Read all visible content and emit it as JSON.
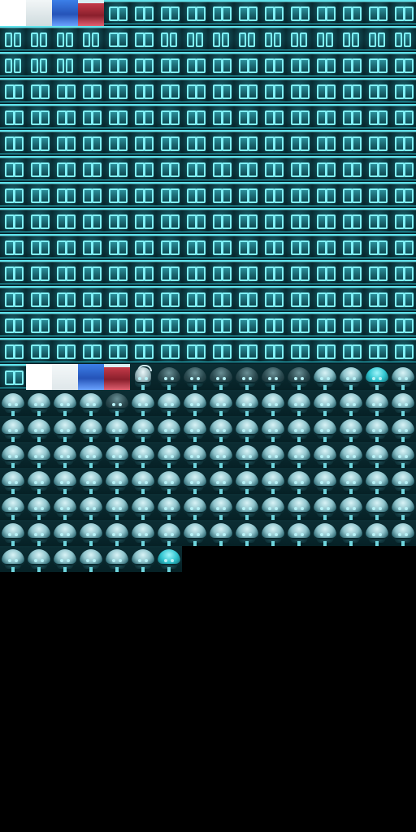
{
  "window": {
    "title": ""
  },
  "sheet": {
    "cols": 16,
    "tile_size": 32,
    "background": "#000000",
    "accent": "#2ec8d6",
    "rows": [
      {
        "kinds": [
          "solid-white",
          "pale-block",
          "blue-block",
          "red-block",
          "block",
          "block",
          "block",
          "block",
          "block",
          "block",
          "block",
          "block",
          "block",
          "block",
          "block",
          "block"
        ]
      },
      {
        "kinds": [
          "block-slim",
          "block-slim",
          "block-slim",
          "block-slim",
          "block",
          "block",
          "block-slim",
          "block-slim",
          "block-slim",
          "block-slim",
          "block-slim",
          "block-slim",
          "block-slim",
          "block-slim",
          "block-slim",
          "block-slim"
        ]
      },
      {
        "kinds": [
          "block-slim",
          "block-slim",
          "block-slim",
          "block",
          "block",
          "block",
          "block",
          "block",
          "block",
          "block",
          "block",
          "block",
          "block",
          "block",
          "block",
          "block"
        ]
      },
      {
        "kinds": [
          "block",
          "block",
          "block",
          "block",
          "block",
          "block",
          "block",
          "block",
          "block",
          "block",
          "block",
          "block",
          "block",
          "block",
          "block",
          "block"
        ]
      },
      {
        "kinds": [
          "block",
          "block",
          "block",
          "block",
          "block",
          "block",
          "block",
          "block",
          "block",
          "block",
          "block",
          "block",
          "block",
          "block",
          "block",
          "block"
        ]
      },
      {
        "kinds": [
          "block",
          "block",
          "block",
          "block",
          "block",
          "block",
          "block",
          "block",
          "block",
          "block",
          "block",
          "block",
          "block",
          "block",
          "block",
          "block"
        ]
      },
      {
        "kinds": [
          "block",
          "block",
          "block",
          "block",
          "block",
          "block",
          "block",
          "block",
          "block",
          "block",
          "block",
          "block",
          "block",
          "block",
          "block",
          "block"
        ]
      },
      {
        "kinds": [
          "block",
          "block",
          "block",
          "block",
          "block",
          "block",
          "block",
          "block",
          "block",
          "block",
          "block",
          "block",
          "block",
          "block",
          "block",
          "block"
        ]
      },
      {
        "kinds": [
          "block",
          "block",
          "block",
          "block",
          "block",
          "block",
          "block",
          "block",
          "block",
          "block",
          "block",
          "block",
          "block",
          "block",
          "block",
          "block"
        ]
      },
      {
        "kinds": [
          "block",
          "block",
          "block",
          "block",
          "block",
          "block",
          "block",
          "block",
          "block",
          "block",
          "block",
          "block",
          "block",
          "block",
          "block",
          "block"
        ]
      },
      {
        "kinds": [
          "block",
          "block",
          "block",
          "block",
          "block",
          "block",
          "block",
          "block",
          "block",
          "block",
          "block",
          "block",
          "block",
          "block",
          "block",
          "block"
        ]
      },
      {
        "kinds": [
          "block",
          "block",
          "block",
          "block",
          "block",
          "block",
          "block",
          "block",
          "block",
          "block",
          "block",
          "block",
          "block",
          "block",
          "block",
          "block"
        ]
      },
      {
        "kinds": [
          "block",
          "block",
          "block",
          "block",
          "block",
          "block",
          "block",
          "block",
          "block",
          "block",
          "block",
          "block",
          "block",
          "block",
          "block",
          "block"
        ]
      },
      {
        "kinds": [
          "block",
          "block",
          "block",
          "block",
          "block",
          "block",
          "block",
          "block",
          "block",
          "block",
          "block",
          "block",
          "block",
          "block",
          "block",
          "block"
        ]
      },
      {
        "kinds": [
          "block",
          "solid-white",
          "solid-light",
          "blue-block",
          "red-block",
          "creature-ghost",
          "creature-dark",
          "creature-dark",
          "creature-dark",
          "creature-dark",
          "creature-dark",
          "creature-dark",
          "creature",
          "creature",
          "creature-cyan",
          "creature"
        ]
      },
      {
        "kinds": [
          "creature",
          "creature",
          "creature",
          "creature",
          "creature-dark",
          "creature",
          "creature",
          "creature",
          "creature",
          "creature",
          "creature",
          "creature",
          "creature",
          "creature",
          "creature",
          "creature"
        ]
      },
      {
        "kinds": [
          "creature",
          "creature",
          "creature",
          "creature",
          "creature",
          "creature",
          "creature",
          "creature",
          "creature",
          "creature",
          "creature",
          "creature",
          "creature",
          "creature",
          "creature",
          "creature"
        ]
      },
      {
        "kinds": [
          "creature",
          "creature",
          "creature",
          "creature",
          "creature",
          "creature",
          "creature",
          "creature",
          "creature",
          "creature",
          "creature",
          "creature",
          "creature",
          "creature",
          "creature",
          "creature"
        ]
      },
      {
        "kinds": [
          "creature",
          "creature",
          "creature",
          "creature",
          "creature",
          "creature",
          "creature",
          "creature",
          "creature",
          "creature",
          "creature",
          "creature",
          "creature",
          "creature",
          "creature",
          "creature"
        ]
      },
      {
        "kinds": [
          "creature",
          "creature",
          "creature",
          "creature",
          "creature",
          "creature",
          "creature",
          "creature",
          "creature",
          "creature",
          "creature",
          "creature",
          "creature",
          "creature",
          "creature",
          "creature"
        ]
      },
      {
        "kinds": [
          "creature",
          "creature",
          "creature",
          "creature",
          "creature",
          "creature",
          "creature",
          "creature",
          "creature",
          "creature",
          "creature",
          "creature",
          "creature",
          "creature",
          "creature",
          "creature"
        ]
      },
      {
        "kinds": [
          "creature",
          "creature",
          "creature",
          "creature",
          "creature",
          "creature",
          "creature-cyan"
        ]
      }
    ]
  }
}
